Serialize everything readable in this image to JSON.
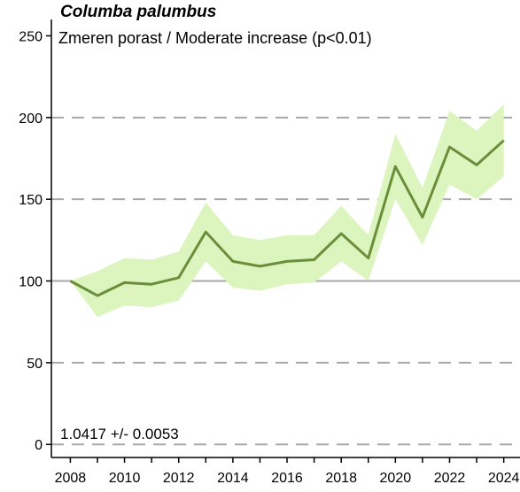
{
  "chart_data": {
    "type": "line",
    "title": "Columba palumbus",
    "subtitle": "Zmeren porast / Moderate increase (p<0.01)",
    "annotation": "1.0417 +/- 0.0053",
    "xlabel": "",
    "ylabel": "",
    "x": [
      2008,
      2009,
      2010,
      2011,
      2012,
      2013,
      2014,
      2015,
      2016,
      2017,
      2018,
      2019,
      2020,
      2021,
      2022,
      2023,
      2024
    ],
    "series": [
      {
        "values": [
          100,
          91,
          99,
          98,
          102,
          130,
          112,
          109,
          112,
          113,
          129,
          114,
          170,
          139,
          182,
          171,
          186
        ],
        "lower": [
          100,
          78,
          85,
          84,
          88,
          112,
          96,
          94,
          98,
          99,
          112,
          100,
          150,
          122,
          159,
          150,
          164
        ],
        "upper": [
          100,
          106,
          114,
          113,
          118,
          148,
          128,
          125,
          128,
          128,
          146,
          128,
          190,
          157,
          204,
          192,
          208
        ]
      }
    ],
    "xlim": [
      2007.3,
      2024.6
    ],
    "ylim": [
      -8,
      260
    ],
    "yticks": [
      0,
      50,
      100,
      150,
      200,
      250
    ],
    "xticks": [
      2008,
      2010,
      2012,
      2014,
      2016,
      2018,
      2020,
      2022,
      2024
    ],
    "reference_lines": [
      {
        "y": 0,
        "style": "dashed"
      },
      {
        "y": 50,
        "style": "dashed"
      },
      {
        "y": 100,
        "style": "solid"
      },
      {
        "y": 150,
        "style": "dashed"
      },
      {
        "y": 200,
        "style": "dashed"
      }
    ],
    "colors": {
      "line": "#6b8e3a",
      "band": "#dcf5be",
      "ref_dashed": "#a8a8a8",
      "ref_solid": "#a8a8a8"
    }
  }
}
